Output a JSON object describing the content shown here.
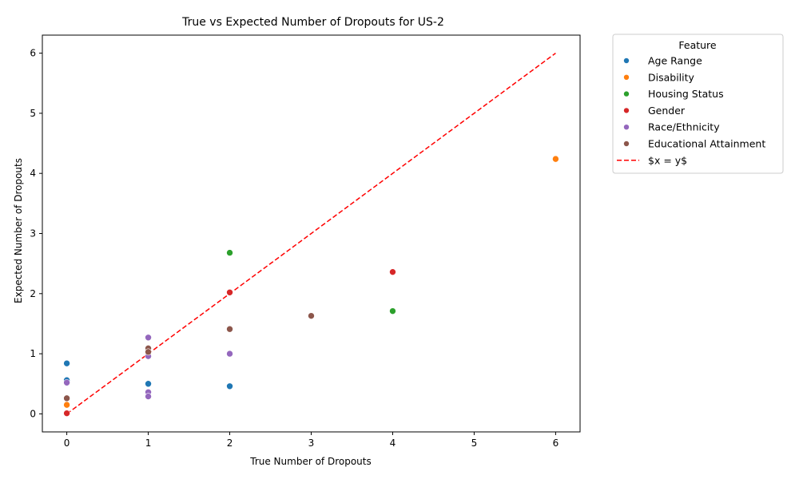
{
  "chart_data": {
    "type": "scatter",
    "title": "True vs Expected Number of Dropouts for US-2",
    "xlabel": "True Number of Dropouts",
    "ylabel": "Expected Number of Dropouts",
    "xlim": [
      -0.3,
      6.3
    ],
    "ylim": [
      -0.3,
      6.3
    ],
    "xticks": [
      "0",
      "1",
      "2",
      "3",
      "4",
      "5",
      "6"
    ],
    "yticks": [
      "0",
      "1",
      "2",
      "3",
      "4",
      "5",
      "6"
    ],
    "grid": false,
    "legend": {
      "title": "Feature",
      "placement": "outside-right-top"
    },
    "series": [
      {
        "name": "Age Range",
        "color": "#1f77b4",
        "points": [
          [
            0,
            0.84
          ],
          [
            0,
            0.56
          ],
          [
            1,
            0.5
          ],
          [
            2,
            0.46
          ]
        ]
      },
      {
        "name": "Disability",
        "color": "#ff7f0e",
        "points": [
          [
            6,
            4.24
          ],
          [
            0,
            0.15
          ]
        ]
      },
      {
        "name": "Housing Status",
        "color": "#2ca02c",
        "points": [
          [
            2,
            2.68
          ],
          [
            4,
            1.71
          ]
        ]
      },
      {
        "name": "Gender",
        "color": "#d62728",
        "points": [
          [
            4,
            2.36
          ],
          [
            2,
            2.02
          ],
          [
            0,
            0.01
          ]
        ]
      },
      {
        "name": "Race/Ethnicity",
        "color": "#9467bd",
        "points": [
          [
            1,
            1.27
          ],
          [
            1,
            0.96
          ],
          [
            2,
            1.0
          ],
          [
            0,
            0.52
          ],
          [
            1,
            0.36
          ],
          [
            1,
            0.29
          ]
        ]
      },
      {
        "name": "Educational Attainment",
        "color": "#8c564b",
        "points": [
          [
            3,
            1.63
          ],
          [
            2,
            1.41
          ],
          [
            1,
            1.09
          ],
          [
            1,
            1.03
          ],
          [
            0,
            0.26
          ]
        ]
      }
    ],
    "reference_line": {
      "name": "$x = y$",
      "color": "#ff0000",
      "style": "dashed",
      "from": [
        0,
        0
      ],
      "to": [
        6,
        6
      ]
    }
  }
}
